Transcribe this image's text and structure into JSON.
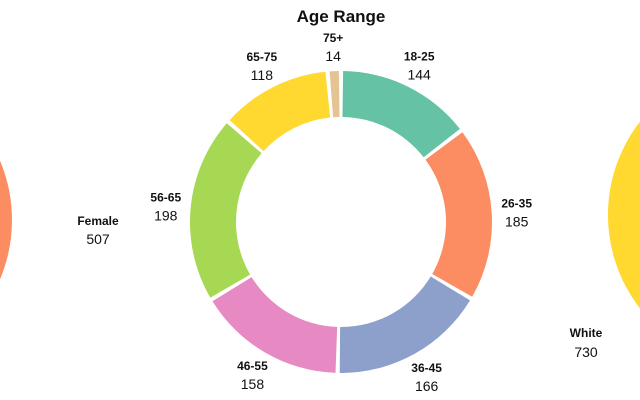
{
  "chart_data": [
    {
      "type": "pie",
      "variant": "donut",
      "title": "",
      "categories": [
        "Female"
      ],
      "values": [
        507
      ],
      "colors": [
        "#fc8d62"
      ]
    },
    {
      "type": "pie",
      "variant": "donut",
      "title": "Age Range",
      "categories": [
        "18-25",
        "26-35",
        "36-45",
        "46-55",
        "56-65",
        "65-75",
        "75+"
      ],
      "values": [
        144,
        185,
        166,
        158,
        198,
        118,
        14
      ],
      "colors": [
        "#66c2a5",
        "#fc8d62",
        "#8da0cb",
        "#e78ac3",
        "#a6d854",
        "#ffd92f",
        "#e5c494"
      ]
    },
    {
      "type": "pie",
      "variant": "donut",
      "title": "",
      "categories": [
        "White"
      ],
      "values": [
        730
      ],
      "colors": [
        "#ffd92f"
      ]
    }
  ]
}
